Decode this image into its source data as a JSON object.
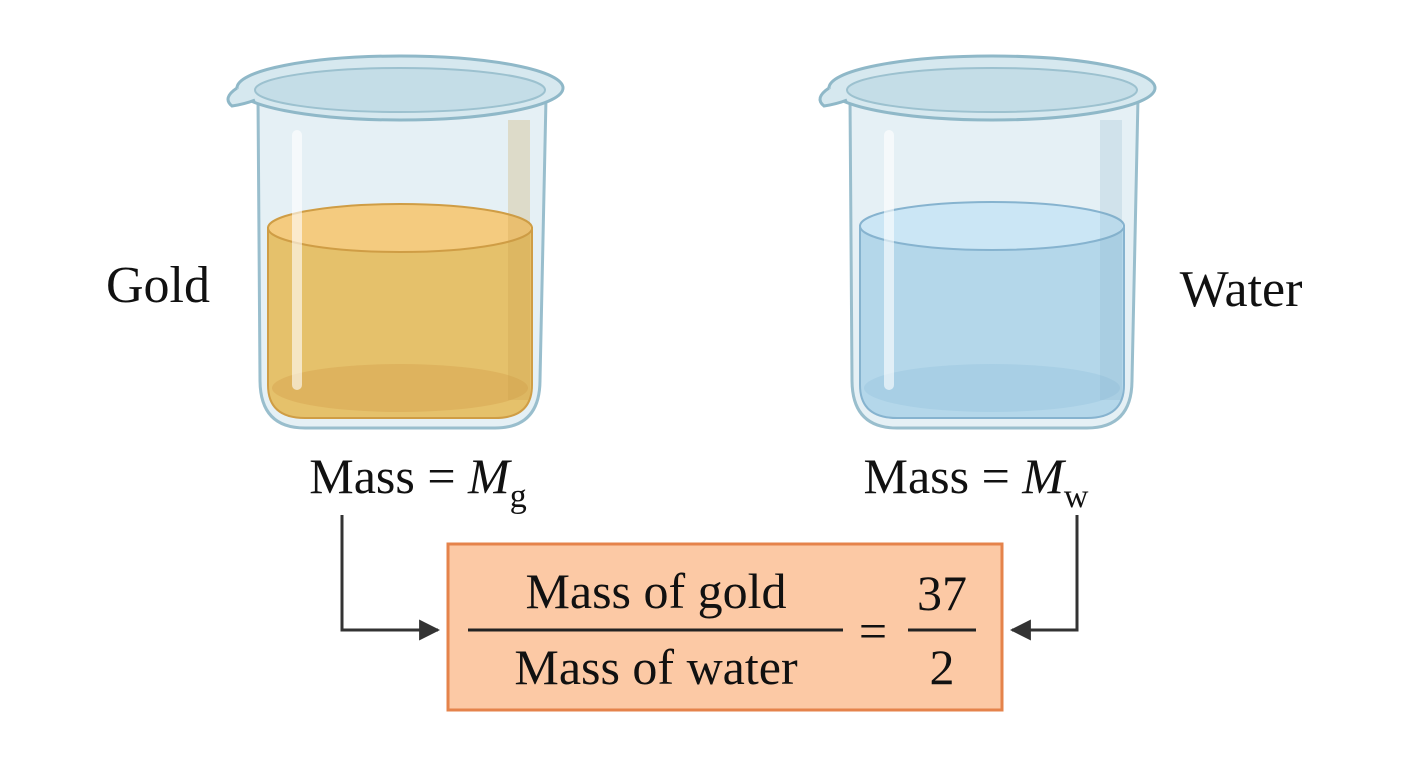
{
  "labels": [
    "Gold",
    "Water"
  ],
  "masses": [
    {
      "prefix": "Mass =",
      "symbol": "M",
      "subscript": "g"
    },
    {
      "prefix": "Mass =",
      "symbol": "M",
      "subscript": "w"
    }
  ],
  "formula": {
    "numerator": "Mass of gold",
    "denominator": "Mass of water",
    "equals": "=",
    "ratio_numerator": 37,
    "ratio_denominator": 2
  }
}
